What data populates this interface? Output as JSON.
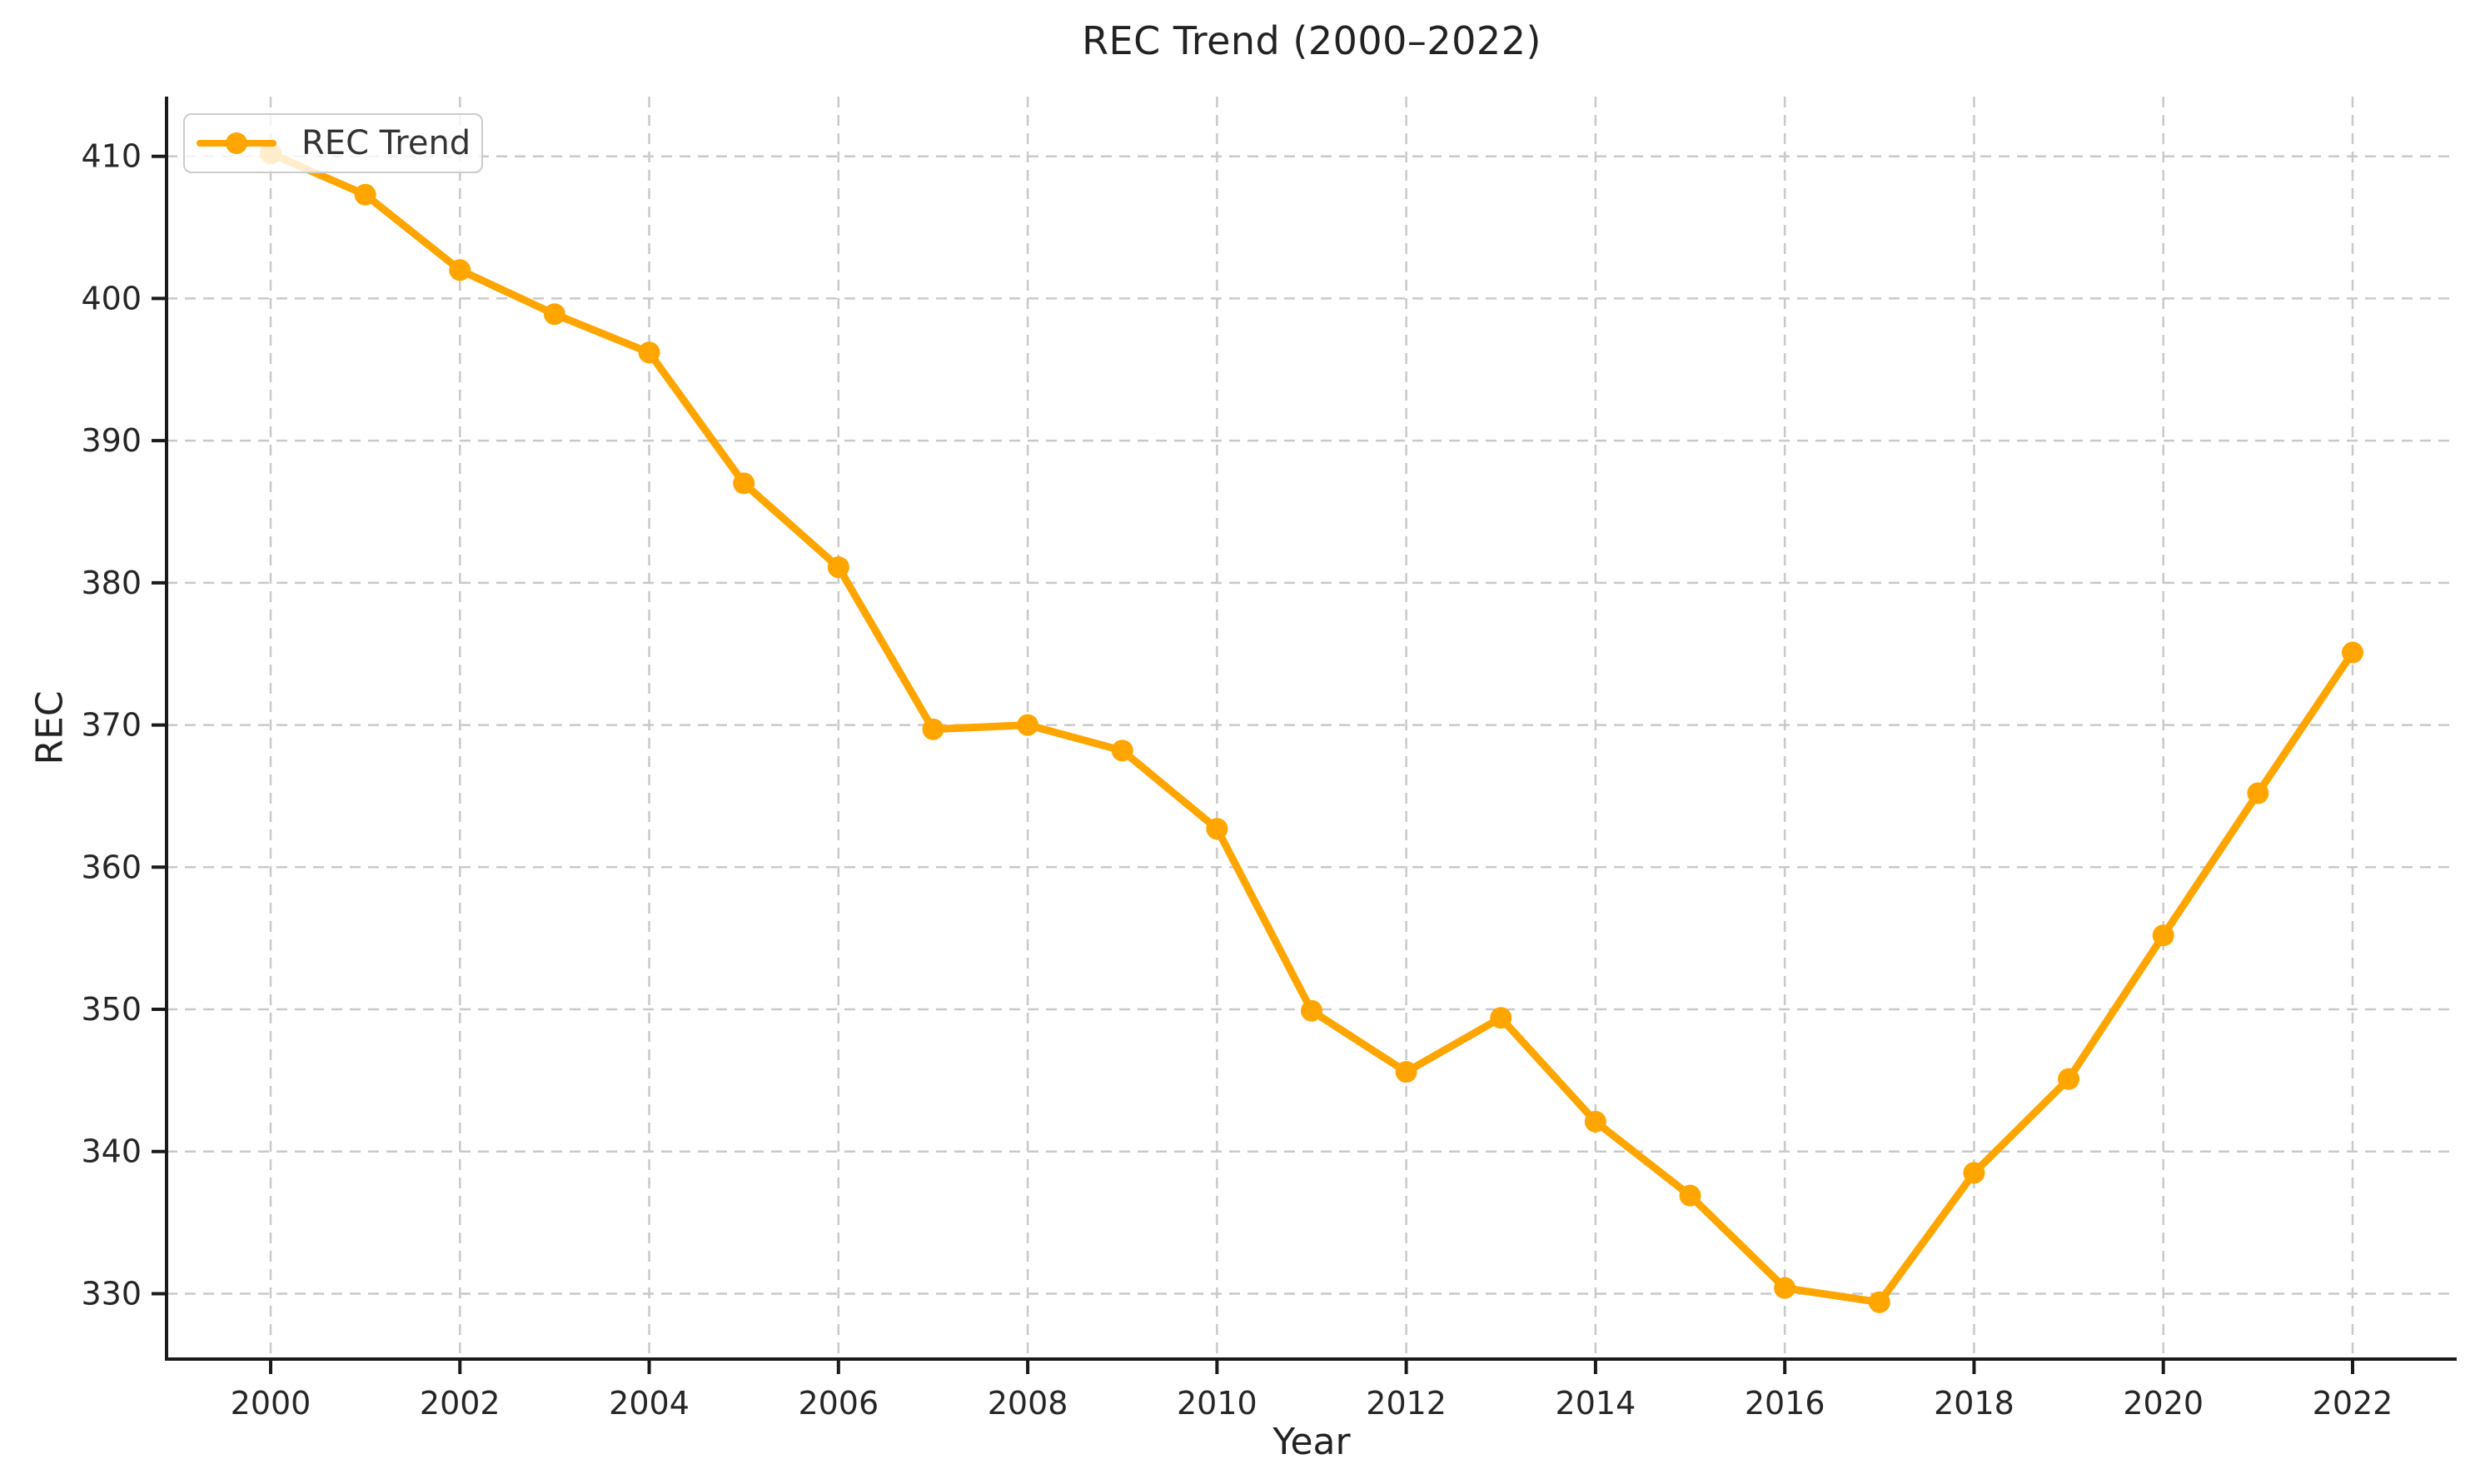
{
  "title": "REC Trend (2000–2022)",
  "xlabel": "Year",
  "ylabel": "REC",
  "legend": {
    "label": "REC Trend"
  },
  "colors": {
    "line": "#FFA500",
    "marker": "#FFA500",
    "grid": "#c9c9c9",
    "spine": "#1a1a1a",
    "tick_text": "#262626",
    "title_text": "#222222",
    "legend_border": "#cccccc"
  },
  "chart_data": {
    "type": "line",
    "title": "REC Trend (2000–2022)",
    "xlabel": "Year",
    "ylabel": "REC",
    "x": [
      2000,
      2001,
      2002,
      2003,
      2004,
      2005,
      2006,
      2007,
      2008,
      2009,
      2010,
      2011,
      2012,
      2013,
      2014,
      2015,
      2016,
      2017,
      2018,
      2019,
      2020,
      2021,
      2022
    ],
    "series": [
      {
        "name": "REC Trend",
        "values": [
          410.2,
          407.3,
          402.0,
          398.9,
          396.2,
          387.0,
          381.1,
          369.7,
          370.0,
          368.2,
          362.7,
          349.9,
          345.6,
          349.4,
          342.1,
          336.9,
          330.4,
          329.4,
          338.5,
          345.1,
          355.2,
          365.2,
          375.1
        ]
      }
    ],
    "xlim": [
      1998.9,
      2023.1
    ],
    "ylim": [
      325.4,
      414.2
    ],
    "xticks": [
      2000,
      2002,
      2004,
      2006,
      2008,
      2010,
      2012,
      2014,
      2016,
      2018,
      2020,
      2022
    ],
    "yticks": [
      330,
      340,
      350,
      360,
      370,
      380,
      390,
      400,
      410
    ],
    "grid": true,
    "grid_style": "dashed",
    "legend_position": "upper left",
    "marker": "circle"
  }
}
